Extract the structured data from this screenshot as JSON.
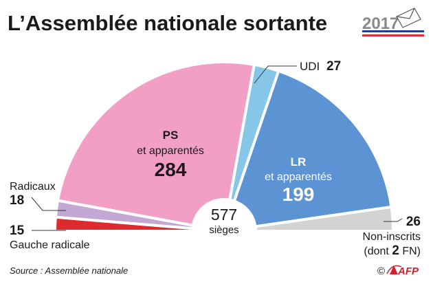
{
  "header": {
    "title": "L’Assemblée nationale sortante",
    "logo_year": "2017"
  },
  "chart_data": {
    "type": "pie",
    "subtype": "hemicycle",
    "center_label": {
      "value": "577",
      "unit": "sièges"
    },
    "total": 577,
    "slices": [
      {
        "key": "gauche_radicale",
        "name": "Gauche radicale",
        "value": 15,
        "color": "#dd2a2f"
      },
      {
        "key": "radicaux",
        "name": "Radicaux",
        "value": 18,
        "color": "#c4a8d4"
      },
      {
        "key": "ps",
        "name": "PS",
        "sub": "et apparentés",
        "value": 284,
        "color": "#f29fc6"
      },
      {
        "key": "udi",
        "name": "UDI",
        "value": 27,
        "color": "#86c7e8"
      },
      {
        "key": "lr",
        "name": "LR",
        "sub": "et apparentés",
        "value": 199,
        "color": "#5b93d3"
      },
      {
        "key": "non_inscrits",
        "name": "Non-inscrits",
        "sub": "(dont 2 FN)",
        "value": 26,
        "color": "#d3d3d3"
      }
    ]
  },
  "labels": {
    "ps_name": "PS",
    "ps_sub": "et apparentés",
    "ps_value": "284",
    "lr_name": "LR",
    "lr_sub": "et apparentés",
    "lr_value": "199",
    "udi_name": "UDI",
    "udi_value": "27",
    "radicaux_name": "Radicaux",
    "radicaux_value": "18",
    "gauche_value": "15",
    "gauche_name": "Gauche radicale",
    "ni_value": "26",
    "ni_name": "Non-inscrits",
    "ni_sub_pre": "(dont ",
    "ni_sub_num": "2",
    "ni_sub_post": " FN)",
    "center_value": "577",
    "center_unit": "sièges"
  },
  "footer": {
    "source": "Source : Assemblée nationale",
    "credit_symbol": "©",
    "credit": "AFP"
  },
  "colors": {
    "flag_blue": "#1f3f8f",
    "flag_red": "#e2293a",
    "afp_red": "#d21f2b"
  }
}
